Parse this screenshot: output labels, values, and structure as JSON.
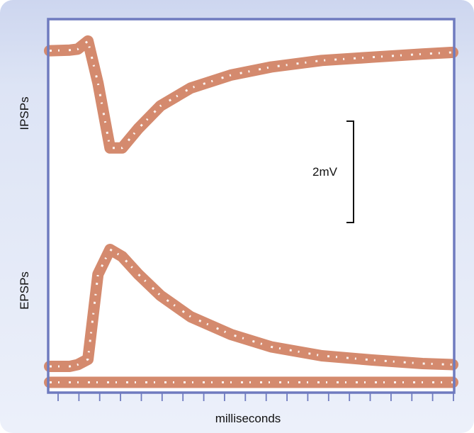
{
  "chart_data": {
    "type": "line",
    "title": "",
    "xlabel": "milliseconds",
    "ylabels": [
      "IPSPs",
      "EPSPs"
    ],
    "grid": false,
    "legend": "none",
    "scale_bar": {
      "label": "2mV",
      "value_mv": 2
    },
    "x_tick_count": 20,
    "x": [
      0,
      1,
      1.4,
      1.9,
      2.4,
      3,
      3.6,
      4.4,
      5.5,
      7,
      9,
      11,
      13.5,
      16,
      18.5,
      20
    ],
    "panels": [
      {
        "name": "IPSPs",
        "ylim": [
          -4.6,
          0.8
        ],
        "series": [
          {
            "name": "",
            "values": [
              0,
              0.02,
              0.05,
              0.3,
              -1.0,
              -3.0,
              -3.0,
              -2.4,
              -1.7,
              -1.15,
              -0.75,
              -0.5,
              -0.3,
              -0.2,
              -0.1,
              -0.05
            ]
          }
        ]
      },
      {
        "name": "EPSPs",
        "ylim": [
          -0.6,
          4.4
        ],
        "series": [
          {
            "name": "",
            "values": [
              0,
              0,
              0.05,
              0.2,
              2.6,
              3.3,
              3.1,
              2.6,
              2.0,
              1.4,
              0.9,
              0.55,
              0.3,
              0.18,
              0.08,
              0.05
            ]
          },
          {
            "name": "",
            "values": [
              -0.45,
              -0.45,
              -0.45,
              -0.45,
              -0.45,
              -0.45,
              -0.45,
              -0.45,
              -0.45,
              -0.45,
              -0.45,
              -0.45,
              -0.45,
              -0.45,
              -0.45,
              -0.45
            ]
          }
        ]
      }
    ],
    "colors": {
      "trace": "#d48a6e",
      "frame": "#6f7bbf",
      "background": "#ffffff",
      "panel": "#dde4f5"
    }
  }
}
